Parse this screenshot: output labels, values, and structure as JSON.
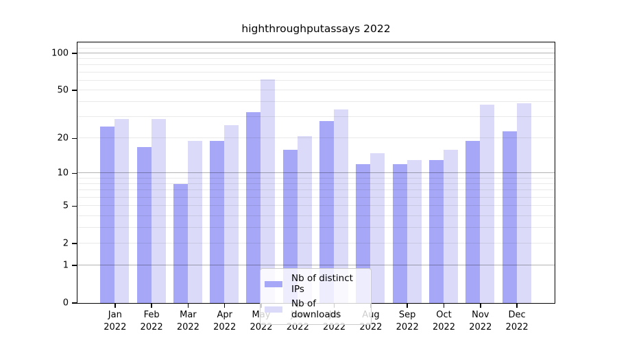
{
  "chart_data": {
    "type": "bar",
    "title": "highthroughputassays 2022",
    "categories": [
      "Jan",
      "Feb",
      "Mar",
      "Apr",
      "May",
      "Jun",
      "Jul",
      "Aug",
      "Sep",
      "Oct",
      "Nov",
      "Dec"
    ],
    "year_label": "2022",
    "series": [
      {
        "name": "Nb of distinct IPs",
        "color": "#a7a7f7",
        "values": [
          25,
          17,
          8,
          19,
          33,
          16,
          28,
          12,
          12,
          13,
          19,
          23
        ]
      },
      {
        "name": "Nb of downloads",
        "color": "#dbdbf9",
        "values": [
          29,
          29,
          19,
          26,
          62,
          21,
          35,
          15,
          13,
          16,
          38,
          39
        ]
      }
    ],
    "yscale": "log10(1+v)",
    "ylim": [
      0,
      126
    ],
    "yticks": [
      0,
      1,
      2,
      5,
      10,
      20,
      50,
      100
    ],
    "major_gridlines": [
      1,
      10,
      100
    ],
    "minor_gridlines": [
      2,
      3,
      4,
      5,
      6,
      7,
      8,
      9,
      20,
      30,
      40,
      50,
      60,
      70,
      80,
      90,
      110,
      120
    ],
    "grid": "on",
    "legend_position": "lower center",
    "axis_color": "#000000",
    "xlabel": "",
    "ylabel": ""
  }
}
